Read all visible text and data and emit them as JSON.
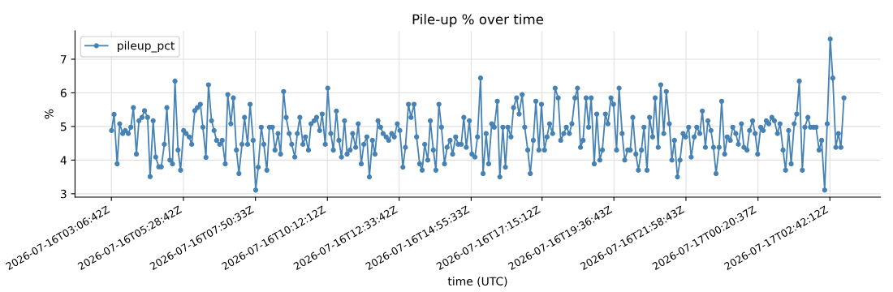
{
  "chart_data": {
    "type": "line",
    "title": "Pile-up % over time",
    "xlabel": "time (UTC)",
    "ylabel": "%",
    "x": [
      "2026-07-16T03:07",
      "2026-07-16T03:12",
      "2026-07-16T03:18",
      "2026-07-16T03:23",
      "2026-07-16T03:29",
      "2026-07-16T03:34",
      "2026-07-16T03:40",
      "2026-07-16T03:45",
      "2026-07-16T03:50",
      "2026-07-16T03:56",
      "2026-07-16T04:01",
      "2026-07-16T04:07",
      "2026-07-16T04:12",
      "2026-07-16T04:18",
      "2026-07-16T04:23",
      "2026-07-16T04:29",
      "2026-07-16T04:34",
      "2026-07-16T04:40",
      "2026-07-16T04:45",
      "2026-07-16T04:51",
      "2026-07-16T04:56",
      "2026-07-16T05:02",
      "2026-07-16T05:07",
      "2026-07-16T05:12",
      "2026-07-16T05:18",
      "2026-07-16T05:23",
      "2026-07-16T05:29",
      "2026-07-16T05:34",
      "2026-07-16T05:40",
      "2026-07-16T05:45",
      "2026-07-16T05:51",
      "2026-07-16T05:56",
      "2026-07-16T06:02",
      "2026-07-16T06:07",
      "2026-07-16T06:13",
      "2026-07-16T06:18",
      "2026-07-16T06:24",
      "2026-07-16T06:29",
      "2026-07-16T06:34",
      "2026-07-16T06:40",
      "2026-07-16T06:45",
      "2026-07-16T06:51",
      "2026-07-16T06:56",
      "2026-07-16T07:02",
      "2026-07-16T07:07",
      "2026-07-16T07:13",
      "2026-07-16T07:18",
      "2026-07-16T07:24",
      "2026-07-16T07:29",
      "2026-07-16T07:35",
      "2026-07-16T07:40",
      "2026-07-16T07:46",
      "2026-07-16T07:51",
      "2026-07-16T07:56",
      "2026-07-16T08:02",
      "2026-07-16T08:07",
      "2026-07-16T08:13",
      "2026-07-16T08:18",
      "2026-07-16T08:24",
      "2026-07-16T08:29",
      "2026-07-16T08:35",
      "2026-07-16T08:40",
      "2026-07-16T08:46",
      "2026-07-16T08:51",
      "2026-07-16T08:57",
      "2026-07-16T09:02",
      "2026-07-16T09:08",
      "2026-07-16T09:13",
      "2026-07-16T09:18",
      "2026-07-16T09:24",
      "2026-07-16T09:29",
      "2026-07-16T09:35",
      "2026-07-16T09:40",
      "2026-07-16T09:46",
      "2026-07-16T09:51",
      "2026-07-16T09:57",
      "2026-07-16T10:02",
      "2026-07-16T10:08",
      "2026-07-16T10:13",
      "2026-07-16T10:19",
      "2026-07-16T10:24",
      "2026-07-16T10:30",
      "2026-07-16T10:35",
      "2026-07-16T10:40",
      "2026-07-16T10:46",
      "2026-07-16T10:51",
      "2026-07-16T10:57",
      "2026-07-16T11:02",
      "2026-07-16T11:08",
      "2026-07-16T11:13",
      "2026-07-16T11:19",
      "2026-07-16T11:24",
      "2026-07-16T11:30",
      "2026-07-16T11:35",
      "2026-07-16T11:41",
      "2026-07-16T11:46",
      "2026-07-16T11:52",
      "2026-07-16T11:57",
      "2026-07-16T12:02",
      "2026-07-16T12:08",
      "2026-07-16T12:13",
      "2026-07-16T12:19",
      "2026-07-16T12:24",
      "2026-07-16T12:30",
      "2026-07-16T12:35",
      "2026-07-16T12:41",
      "2026-07-16T12:46",
      "2026-07-16T12:52",
      "2026-07-16T12:57",
      "2026-07-16T13:03",
      "2026-07-16T13:08",
      "2026-07-16T13:14",
      "2026-07-16T13:19",
      "2026-07-16T13:24",
      "2026-07-16T13:30",
      "2026-07-16T13:35",
      "2026-07-16T13:41",
      "2026-07-16T13:46",
      "2026-07-16T13:52",
      "2026-07-16T13:57",
      "2026-07-16T14:03",
      "2026-07-16T14:08",
      "2026-07-16T14:14",
      "2026-07-16T14:19",
      "2026-07-16T14:25",
      "2026-07-16T14:30",
      "2026-07-16T14:36",
      "2026-07-16T14:41",
      "2026-07-16T14:46",
      "2026-07-16T14:52",
      "2026-07-16T14:57",
      "2026-07-16T15:03",
      "2026-07-16T15:08",
      "2026-07-16T15:14",
      "2026-07-16T15:19",
      "2026-07-16T15:25",
      "2026-07-16T15:30",
      "2026-07-16T15:36",
      "2026-07-16T15:41",
      "2026-07-16T15:47",
      "2026-07-16T15:52",
      "2026-07-16T15:58",
      "2026-07-16T16:03",
      "2026-07-16T16:08",
      "2026-07-16T16:14",
      "2026-07-16T16:19",
      "2026-07-16T16:25",
      "2026-07-16T16:30",
      "2026-07-16T16:36",
      "2026-07-16T16:41",
      "2026-07-16T16:47",
      "2026-07-16T16:52",
      "2026-07-16T16:58",
      "2026-07-16T17:03",
      "2026-07-16T17:09",
      "2026-07-16T17:14",
      "2026-07-16T17:20",
      "2026-07-16T17:25",
      "2026-07-16T17:30",
      "2026-07-16T17:36",
      "2026-07-16T17:41",
      "2026-07-16T17:47",
      "2026-07-16T17:52",
      "2026-07-16T17:58",
      "2026-07-16T18:03",
      "2026-07-16T18:09",
      "2026-07-16T18:14",
      "2026-07-16T18:20",
      "2026-07-16T18:25",
      "2026-07-16T18:31",
      "2026-07-16T18:36",
      "2026-07-16T18:42",
      "2026-07-16T18:47",
      "2026-07-16T18:52",
      "2026-07-16T18:58",
      "2026-07-16T19:03",
      "2026-07-16T19:09",
      "2026-07-16T19:14",
      "2026-07-16T19:20",
      "2026-07-16T19:25",
      "2026-07-16T19:31",
      "2026-07-16T19:36",
      "2026-07-16T19:42",
      "2026-07-16T19:47",
      "2026-07-16T19:53",
      "2026-07-16T19:58",
      "2026-07-16T20:04",
      "2026-07-16T20:09",
      "2026-07-16T20:14",
      "2026-07-16T20:20",
      "2026-07-16T20:25",
      "2026-07-16T20:31",
      "2026-07-16T20:36",
      "2026-07-16T20:42",
      "2026-07-16T20:47",
      "2026-07-16T20:53",
      "2026-07-16T20:58",
      "2026-07-16T21:04",
      "2026-07-16T21:09",
      "2026-07-16T21:15",
      "2026-07-16T21:20",
      "2026-07-16T21:26",
      "2026-07-16T21:31",
      "2026-07-16T21:36",
      "2026-07-16T21:42",
      "2026-07-16T21:47",
      "2026-07-16T21:53",
      "2026-07-16T21:58",
      "2026-07-16T22:04",
      "2026-07-16T22:09",
      "2026-07-16T22:15",
      "2026-07-16T22:20",
      "2026-07-16T22:26",
      "2026-07-16T22:31",
      "2026-07-16T22:37",
      "2026-07-16T22:42",
      "2026-07-16T22:48",
      "2026-07-16T22:53",
      "2026-07-16T22:58",
      "2026-07-16T23:04",
      "2026-07-16T23:09",
      "2026-07-16T23:15",
      "2026-07-16T23:20",
      "2026-07-16T23:26",
      "2026-07-16T23:31",
      "2026-07-16T23:37",
      "2026-07-16T23:42",
      "2026-07-16T23:48",
      "2026-07-16T23:53",
      "2026-07-16T23:59",
      "2026-07-17T00:04",
      "2026-07-17T00:10",
      "2026-07-17T00:15",
      "2026-07-17T00:20",
      "2026-07-17T00:26",
      "2026-07-17T00:31",
      "2026-07-17T00:37",
      "2026-07-17T00:42",
      "2026-07-17T00:48",
      "2026-07-17T00:53",
      "2026-07-17T00:59",
      "2026-07-17T01:04",
      "2026-07-17T01:10",
      "2026-07-17T01:15",
      "2026-07-17T01:21",
      "2026-07-17T01:26",
      "2026-07-17T01:32",
      "2026-07-17T01:37",
      "2026-07-17T01:42",
      "2026-07-17T01:48",
      "2026-07-17T01:53",
      "2026-07-17T01:59",
      "2026-07-17T02:04",
      "2026-07-17T02:10",
      "2026-07-17T02:15",
      "2026-07-17T02:21",
      "2026-07-17T02:26",
      "2026-07-17T02:32",
      "2026-07-17T02:37",
      "2026-07-17T02:43",
      "2026-07-17T02:48",
      "2026-07-17T02:54",
      "2026-07-17T02:59",
      "2026-07-17T03:04",
      "2026-07-17T03:10"
    ],
    "series": [
      {
        "name": "pileup_pct",
        "color": "#4682b4",
        "values": [
          4.88,
          5.36,
          3.89,
          5.08,
          4.79,
          4.88,
          4.79,
          4.98,
          5.56,
          4.18,
          5.17,
          5.27,
          5.47,
          5.27,
          3.51,
          5.17,
          4.09,
          3.8,
          3.8,
          4.47,
          5.56,
          4.0,
          3.89,
          6.35,
          4.3,
          3.7,
          4.88,
          4.79,
          4.69,
          4.47,
          5.47,
          5.56,
          5.66,
          4.98,
          4.08,
          6.24,
          5.17,
          4.88,
          4.59,
          4.47,
          4.59,
          3.89,
          5.95,
          5.08,
          5.85,
          4.3,
          3.6,
          4.47,
          5.27,
          4.47,
          5.66,
          4.59,
          3.11,
          3.79,
          4.98,
          4.47,
          3.7,
          4.98,
          4.98,
          4.3,
          4.79,
          4.18,
          6.04,
          5.27,
          4.79,
          4.47,
          4.09,
          4.79,
          5.27,
          4.47,
          4.69,
          4.3,
          5.08,
          5.17,
          5.27,
          4.88,
          5.37,
          4.47,
          6.14,
          4.79,
          4.3,
          5.46,
          4.59,
          4.09,
          5.17,
          4.18,
          4.3,
          4.79,
          4.38,
          5.08,
          3.89,
          4.47,
          4.69,
          3.5,
          4.59,
          4.18,
          5.17,
          4.98,
          4.79,
          4.69,
          4.59,
          4.79,
          4.69,
          5.08,
          4.88,
          3.79,
          4.38,
          5.66,
          5.27,
          5.66,
          4.69,
          3.89,
          3.7,
          4.47,
          4.0,
          5.17,
          4.3,
          3.7,
          5.66,
          4.98,
          3.89,
          4.38,
          4.59,
          4.18,
          4.69,
          4.47,
          4.47,
          5.27,
          4.38,
          5.17,
          4.18,
          4.09,
          4.69,
          6.44,
          3.6,
          4.79,
          3.89,
          5.08,
          4.98,
          5.75,
          3.5,
          4.98,
          3.79,
          4.98,
          4.69,
          5.56,
          5.85,
          5.37,
          5.95,
          4.98,
          4.3,
          3.6,
          4.59,
          5.75,
          4.3,
          5.66,
          4.3,
          4.69,
          5.08,
          4.79,
          6.14,
          5.85,
          4.59,
          4.79,
          4.98,
          4.79,
          5.08,
          5.85,
          6.14,
          4.38,
          4.59,
          5.85,
          4.98,
          5.85,
          3.89,
          5.37,
          4.0,
          4.3,
          5.37,
          5.08,
          5.85,
          5.66,
          4.3,
          6.14,
          4.79,
          4.0,
          4.3,
          4.3,
          5.27,
          4.18,
          3.7,
          4.3,
          4.98,
          3.7,
          5.27,
          4.69,
          5.85,
          4.38,
          6.24,
          4.79,
          6.04,
          5.08,
          4.0,
          4.59,
          3.5,
          4.0,
          4.79,
          4.69,
          4.98,
          4.09,
          4.69,
          4.98,
          4.79,
          5.46,
          4.38,
          5.17,
          4.88,
          4.38,
          3.6,
          4.38,
          5.75,
          4.18,
          4.69,
          4.59,
          4.98,
          4.79,
          4.47,
          5.08,
          4.38,
          4.3,
          4.88,
          5.17,
          4.79,
          4.18,
          4.98,
          4.88,
          5.17,
          5.08,
          5.27,
          5.17,
          4.79,
          5.08,
          4.3,
          3.7,
          4.88,
          3.89,
          5.08,
          5.37,
          6.35,
          3.7,
          4.98,
          5.27,
          4.98,
          4.98,
          4.98,
          4.3,
          4.59,
          3.11,
          5.08,
          7.6,
          6.44,
          4.38,
          4.79,
          4.38,
          5.85
        ]
      }
    ],
    "xlim": [
      "2026-07-16T01:55",
      "2026-07-17T04:22"
    ],
    "xticks": [
      {
        "value": "2026-07-16T03:06:42",
        "label": "2026-07-16T03:06:42Z"
      },
      {
        "value": "2026-07-16T05:28:42",
        "label": "2026-07-16T05:28:42Z"
      },
      {
        "value": "2026-07-16T07:50:33",
        "label": "2026-07-16T07:50:33Z"
      },
      {
        "value": "2026-07-16T10:12:12",
        "label": "2026-07-16T10:12:12Z"
      },
      {
        "value": "2026-07-16T12:33:42",
        "label": "2026-07-16T12:33:42Z"
      },
      {
        "value": "2026-07-16T14:55:33",
        "label": "2026-07-16T14:55:33Z"
      },
      {
        "value": "2026-07-16T17:15:12",
        "label": "2026-07-16T17:15:12Z"
      },
      {
        "value": "2026-07-16T19:36:43",
        "label": "2026-07-16T19:36:43Z"
      },
      {
        "value": "2026-07-16T21:58:43",
        "label": "2026-07-16T21:58:43Z"
      },
      {
        "value": "2026-07-17T00:20:37",
        "label": "2026-07-17T00:20:37Z"
      },
      {
        "value": "2026-07-17T02:42:12",
        "label": "2026-07-17T02:42:12Z"
      }
    ],
    "ylim": [
      2.9,
      7.84
    ],
    "yticks": [
      3,
      4,
      5,
      6,
      7
    ],
    "grid": true,
    "legend": "top left",
    "marker": "circle",
    "line_style": "solid"
  }
}
